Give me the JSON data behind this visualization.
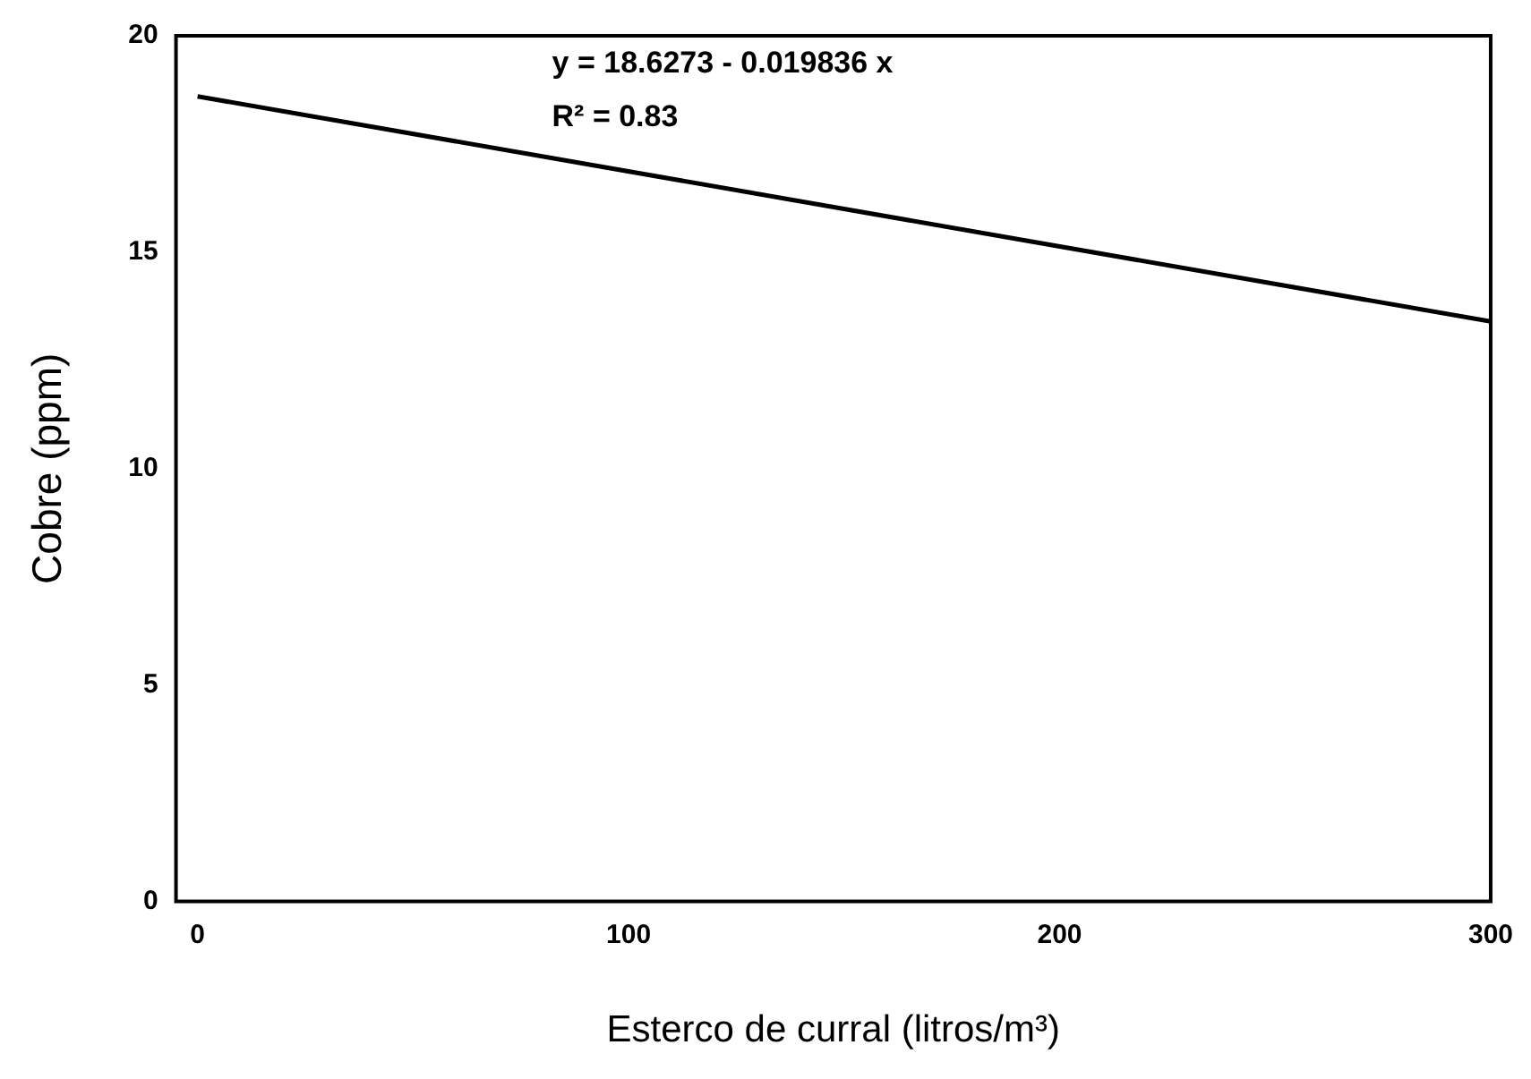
{
  "chart_data": {
    "type": "line",
    "xlabel": "Esterco de curral (litros/m³)",
    "ylabel": "Cobre (ppm)",
    "annotations": [
      "y = 18.6273 - 0.019836 x",
      "R² = 0.83"
    ],
    "x": [
      0,
      300
    ],
    "series": [
      {
        "color": "#000000",
        "values": [
          18.6,
          13.4
        ]
      }
    ],
    "xlim": [
      -5,
      300
    ],
    "xticks": [
      0,
      100,
      200,
      300
    ],
    "ylim": [
      0,
      20
    ],
    "yticks": [
      0,
      5,
      10,
      15,
      20
    ],
    "grid": false,
    "legend": false,
    "marker": "none",
    "line_style": "solid"
  }
}
